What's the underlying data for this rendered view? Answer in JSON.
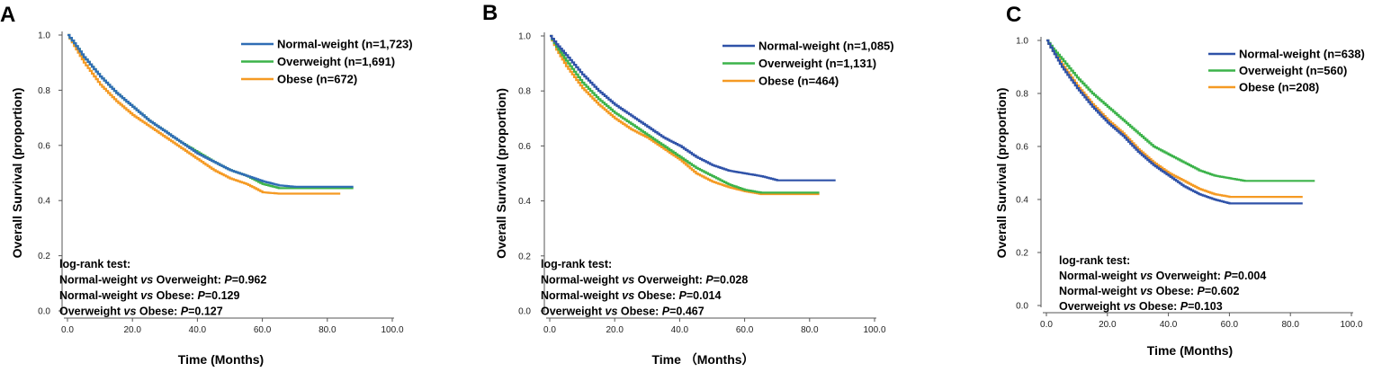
{
  "chart_data": [
    {
      "panel_label": "A",
      "type": "line",
      "subtype": "kaplan-meier",
      "xlabel": "Time (Months)",
      "ylabel": "Overall Survival (proportion)",
      "xlim": [
        0,
        100
      ],
      "ylim": [
        0,
        1
      ],
      "x_ticks": [
        "0.0",
        "20.0",
        "40.0",
        "60.0",
        "80.0",
        "100.0"
      ],
      "y_ticks": [
        "0.0",
        "0.2",
        "0.4",
        "0.6",
        "0.8",
        "1.0"
      ],
      "legend_position": "top-right",
      "series": [
        {
          "name": "Normal-weight (n=1,723)",
          "color": "#2f6db5",
          "x": [
            0,
            2,
            5,
            10,
            15,
            20,
            25,
            30,
            35,
            40,
            45,
            50,
            55,
            60,
            65,
            70,
            75,
            80,
            85,
            88
          ],
          "y": [
            1.0,
            0.97,
            0.92,
            0.85,
            0.79,
            0.74,
            0.69,
            0.65,
            0.61,
            0.57,
            0.54,
            0.51,
            0.49,
            0.47,
            0.455,
            0.45,
            0.45,
            0.45,
            0.45,
            0.45
          ]
        },
        {
          "name": "Overweight (n=1,691)",
          "color": "#3cb34a",
          "x": [
            0,
            2,
            5,
            10,
            15,
            20,
            25,
            30,
            35,
            40,
            45,
            50,
            55,
            60,
            65,
            70,
            75,
            80,
            85,
            88
          ],
          "y": [
            1.0,
            0.97,
            0.92,
            0.85,
            0.79,
            0.74,
            0.69,
            0.65,
            0.61,
            0.575,
            0.54,
            0.51,
            0.49,
            0.46,
            0.445,
            0.445,
            0.445,
            0.445,
            0.445,
            0.445
          ]
        },
        {
          "name": "Obese (n=672)",
          "color": "#f59a23",
          "x": [
            0,
            2,
            5,
            10,
            15,
            20,
            25,
            30,
            35,
            40,
            45,
            50,
            55,
            60,
            65,
            70,
            75,
            80,
            84
          ],
          "y": [
            1.0,
            0.96,
            0.9,
            0.82,
            0.76,
            0.71,
            0.67,
            0.63,
            0.59,
            0.55,
            0.51,
            0.48,
            0.46,
            0.43,
            0.425,
            0.425,
            0.425,
            0.425,
            0.425
          ]
        }
      ],
      "annotations": [
        {
          "text": "log-rank test:"
        },
        {
          "text": "Normal-weight vs Overweight: P=0.962"
        },
        {
          "text": "Normal-weight vs Obese: P=0.129"
        },
        {
          "text": "Overweight vs Obese: P=0.127"
        }
      ]
    },
    {
      "panel_label": "B",
      "type": "line",
      "subtype": "kaplan-meier",
      "xlabel": "Time （Months）",
      "ylabel": "Overall Survival (proportion)",
      "xlim": [
        0,
        100
      ],
      "ylim": [
        0,
        1
      ],
      "x_ticks": [
        "0.0",
        "20.0",
        "40.0",
        "60.0",
        "80.0",
        "100.0"
      ],
      "y_ticks": [
        "0.0",
        "0.2",
        "0.4",
        "0.6",
        "0.8",
        "1.0"
      ],
      "legend_position": "top-right",
      "series": [
        {
          "name": "Normal-weight (n=1,085)",
          "color": "#2f52a8",
          "x": [
            0,
            2,
            5,
            10,
            15,
            20,
            25,
            30,
            35,
            40,
            45,
            50,
            55,
            60,
            65,
            70,
            75,
            80,
            85,
            88
          ],
          "y": [
            1.0,
            0.97,
            0.93,
            0.86,
            0.8,
            0.75,
            0.71,
            0.67,
            0.63,
            0.6,
            0.56,
            0.53,
            0.51,
            0.5,
            0.49,
            0.475,
            0.475,
            0.475,
            0.475,
            0.475
          ]
        },
        {
          "name": "Overweight (n=1,131)",
          "color": "#3cb34a",
          "x": [
            0,
            2,
            5,
            10,
            15,
            20,
            25,
            30,
            35,
            40,
            45,
            50,
            55,
            60,
            65,
            70,
            75,
            80,
            83
          ],
          "y": [
            1.0,
            0.96,
            0.91,
            0.83,
            0.77,
            0.72,
            0.68,
            0.64,
            0.6,
            0.56,
            0.52,
            0.49,
            0.46,
            0.44,
            0.43,
            0.43,
            0.43,
            0.43,
            0.43
          ]
        },
        {
          "name": "Obese (n=464)",
          "color": "#f59a23",
          "x": [
            0,
            2,
            5,
            10,
            15,
            20,
            25,
            30,
            35,
            40,
            45,
            50,
            55,
            60,
            65,
            70,
            75,
            80,
            83
          ],
          "y": [
            1.0,
            0.95,
            0.89,
            0.81,
            0.75,
            0.7,
            0.66,
            0.63,
            0.59,
            0.55,
            0.5,
            0.47,
            0.45,
            0.435,
            0.425,
            0.425,
            0.425,
            0.425,
            0.425
          ]
        }
      ],
      "annotations": [
        {
          "text": "log-rank test:"
        },
        {
          "text": "Normal-weight vs Overweight: P=0.028"
        },
        {
          "text": "Normal-weight vs Obese: P=0.014"
        },
        {
          "text": "Overweight vs Obese: P=0.467"
        }
      ]
    },
    {
      "panel_label": "C",
      "type": "line",
      "subtype": "kaplan-meier",
      "xlabel": "Time (Months)",
      "ylabel": "Overall Survival (proportion)",
      "xlim": [
        0,
        100
      ],
      "ylim": [
        0,
        1
      ],
      "x_ticks": [
        "0.0",
        "20.0",
        "40.0",
        "60.0",
        "80.0",
        "100.0"
      ],
      "y_ticks": [
        "0.0",
        "0.2",
        "0.4",
        "0.6",
        "0.8",
        "1.0"
      ],
      "legend_position": "top-right",
      "series": [
        {
          "name": "Normal-weight (n=638)",
          "color": "#2f52a8",
          "x": [
            0,
            2,
            5,
            10,
            15,
            20,
            25,
            30,
            35,
            40,
            45,
            50,
            55,
            60,
            65,
            70,
            75,
            80,
            84
          ],
          "y": [
            1.0,
            0.96,
            0.9,
            0.82,
            0.75,
            0.69,
            0.64,
            0.58,
            0.53,
            0.49,
            0.45,
            0.42,
            0.4,
            0.385,
            0.385,
            0.385,
            0.385,
            0.385,
            0.385
          ]
        },
        {
          "name": "Overweight (n=560)",
          "color": "#3cb34a",
          "x": [
            0,
            2,
            5,
            10,
            15,
            20,
            25,
            30,
            35,
            40,
            45,
            50,
            55,
            60,
            65,
            70,
            75,
            80,
            85,
            88
          ],
          "y": [
            1.0,
            0.97,
            0.93,
            0.86,
            0.8,
            0.75,
            0.7,
            0.65,
            0.6,
            0.57,
            0.54,
            0.51,
            0.49,
            0.48,
            0.47,
            0.47,
            0.47,
            0.47,
            0.47,
            0.47
          ]
        },
        {
          "name": "Obese (n=208)",
          "color": "#f59a23",
          "x": [
            0,
            2,
            5,
            10,
            15,
            20,
            25,
            30,
            35,
            40,
            45,
            50,
            55,
            60,
            65,
            70,
            75,
            80,
            84
          ],
          "y": [
            1.0,
            0.96,
            0.91,
            0.83,
            0.76,
            0.7,
            0.65,
            0.59,
            0.54,
            0.5,
            0.47,
            0.44,
            0.42,
            0.41,
            0.41,
            0.41,
            0.41,
            0.41,
            0.41
          ]
        }
      ],
      "annotations": [
        {
          "text": "log-rank test:"
        },
        {
          "text": "Normal-weight vs Overweight: P=0.004"
        },
        {
          "text": "Normal-weight vs Obese: P=0.602"
        },
        {
          "text": "Overweight vs Obese: P=0.103"
        }
      ]
    }
  ]
}
